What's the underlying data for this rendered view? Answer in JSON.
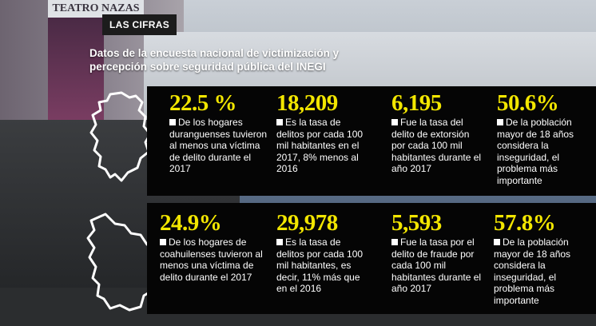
{
  "header": {
    "tag": "LAS CIFRAS",
    "title": "Datos de la encuesta nacional de victimización y percepción sobre seguridad pública del INEGI"
  },
  "background": {
    "theater_sign": "TEATRO NAZAS"
  },
  "colors": {
    "accent": "#f2e600",
    "panel": "#050505",
    "text": "#ffffff"
  },
  "durango": {
    "map_icon": "durango-state-outline-icon",
    "stats": [
      {
        "value": "22.5 %",
        "text": "De los hogares duranguenses tuvieron al menos una víctima de delito durante el 2017"
      },
      {
        "value": "18,209",
        "text": "Es la tasa de delitos por cada 100 mil habitantes en el 2017, 8% menos al 2016"
      },
      {
        "value": "6,195",
        "text": "Fue la tasa del delito de extorsión por cada 100 mil habitantes durante el año  2017"
      },
      {
        "value": "50.6%",
        "text": "De la población mayor de 18 años considera la inseguridad, el problema más importante"
      }
    ]
  },
  "coahuila": {
    "map_icon": "coahuila-state-outline-icon",
    "stats": [
      {
        "value": "24.9%",
        "text": "De los hogares de coahuilenses tuvieron al menos una víctima de delito durante el 2017"
      },
      {
        "value": "29,978",
        "text": "Es la tasa de delitos por cada 100 mil habitantes, es decir, 11% más que en el 2016"
      },
      {
        "value": "5,593",
        "text": "Fue la tasa por el delito de fraude por cada 100 mil habitantes durante el año 2017"
      },
      {
        "value": "57.8%",
        "text": "De la población mayor de 18 años considera la inseguridad, el problema más importante"
      }
    ]
  }
}
